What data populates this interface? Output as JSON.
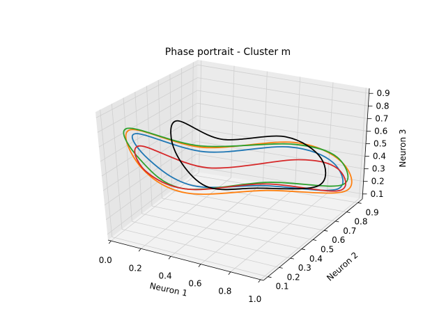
{
  "chart_data": {
    "type": "line3d",
    "title": "Phase portrait - Cluster m",
    "xlabel": "Neuron 1",
    "ylabel": "Neuron 2",
    "zlabel": "Neuron 3",
    "xticks": [
      "0.0",
      "0.2",
      "0.4",
      "0.6",
      "0.8",
      "1.0"
    ],
    "yticks": [
      "0.1",
      "0.2",
      "0.3",
      "0.4",
      "0.5",
      "0.6",
      "0.7",
      "0.8",
      "0.9"
    ],
    "zticks": [
      "0.1",
      "0.2",
      "0.3",
      "0.4",
      "0.5",
      "0.6",
      "0.7",
      "0.8",
      "0.9"
    ],
    "xlim": [
      -0.02,
      1.02
    ],
    "ylim": [
      0.06,
      0.94
    ],
    "zlim": [
      0.06,
      0.94
    ],
    "grid": true,
    "colors": [
      "#1f77b4",
      "#ff7f0e",
      "#2ca02c",
      "#d62728",
      "#000000"
    ],
    "series": [
      {
        "color": "#1f77b4",
        "points": [
          [
            0.1,
            0.22,
            0.75
          ],
          [
            0.55,
            0.2,
            0.74
          ],
          [
            0.82,
            0.55,
            0.66
          ],
          [
            0.92,
            0.8,
            0.42
          ],
          [
            0.92,
            0.85,
            0.18
          ],
          [
            0.5,
            0.8,
            0.15
          ],
          [
            0.18,
            0.6,
            0.2
          ],
          [
            0.08,
            0.35,
            0.5
          ]
        ]
      },
      {
        "color": "#ff7f0e",
        "points": [
          [
            0.08,
            0.2,
            0.78
          ],
          [
            0.55,
            0.18,
            0.78
          ],
          [
            0.85,
            0.55,
            0.7
          ],
          [
            0.96,
            0.82,
            0.42
          ],
          [
            0.95,
            0.88,
            0.15
          ],
          [
            0.5,
            0.82,
            0.1
          ],
          [
            0.15,
            0.58,
            0.15
          ],
          [
            0.05,
            0.32,
            0.45
          ]
        ]
      },
      {
        "color": "#2ca02c",
        "points": [
          [
            0.08,
            0.18,
            0.8
          ],
          [
            0.55,
            0.16,
            0.8
          ],
          [
            0.88,
            0.5,
            0.72
          ],
          [
            0.96,
            0.78,
            0.48
          ],
          [
            0.95,
            0.85,
            0.22
          ],
          [
            0.52,
            0.8,
            0.18
          ],
          [
            0.15,
            0.55,
            0.2
          ],
          [
            0.06,
            0.3,
            0.52
          ]
        ]
      },
      {
        "color": "#d62728",
        "points": [
          [
            0.1,
            0.25,
            0.65
          ],
          [
            0.55,
            0.22,
            0.62
          ],
          [
            0.88,
            0.55,
            0.58
          ],
          [
            0.95,
            0.8,
            0.38
          ],
          [
            0.94,
            0.84,
            0.18
          ],
          [
            0.52,
            0.78,
            0.18
          ],
          [
            0.16,
            0.58,
            0.18
          ],
          [
            0.06,
            0.34,
            0.42
          ]
        ]
      },
      {
        "color": "#000000",
        "points": [
          [
            0.3,
            0.3,
            0.85
          ],
          [
            0.62,
            0.25,
            0.82
          ],
          [
            0.82,
            0.52,
            0.75
          ],
          [
            0.86,
            0.78,
            0.45
          ],
          [
            0.8,
            0.85,
            0.18
          ],
          [
            0.45,
            0.8,
            0.12
          ],
          [
            0.25,
            0.62,
            0.2
          ],
          [
            0.2,
            0.42,
            0.55
          ]
        ]
      }
    ]
  }
}
